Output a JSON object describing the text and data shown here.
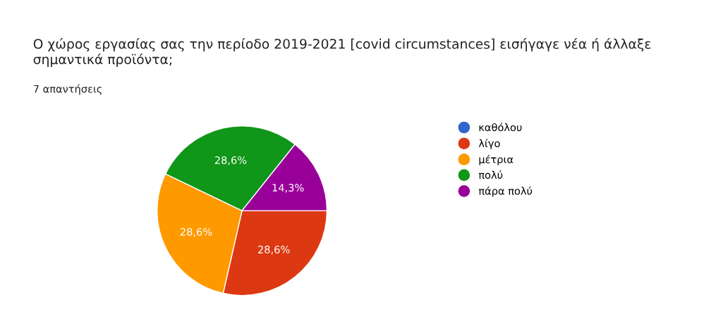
{
  "chart_data": {
    "type": "pie",
    "title": "Ο χώρος εργασίας σας την περίοδο 2019-2021 [covid circumstances] εισήγαγε νέα ή άλλαξε σημαντικά προϊόντα;",
    "subtitle": "7 απαντήσεις",
    "categories": [
      "καθόλου",
      "λίγο",
      "μέτρια",
      "πολύ",
      "πάρα πολύ"
    ],
    "values": [
      0,
      28.6,
      28.6,
      28.6,
      14.3
    ],
    "colors": [
      "#3366cc",
      "#dc3912",
      "#ff9900",
      "#109618",
      "#990099"
    ],
    "value_labels": [
      null,
      "28,6%",
      "28,6%",
      "28,6%",
      "14,3%"
    ],
    "legend": "right"
  }
}
